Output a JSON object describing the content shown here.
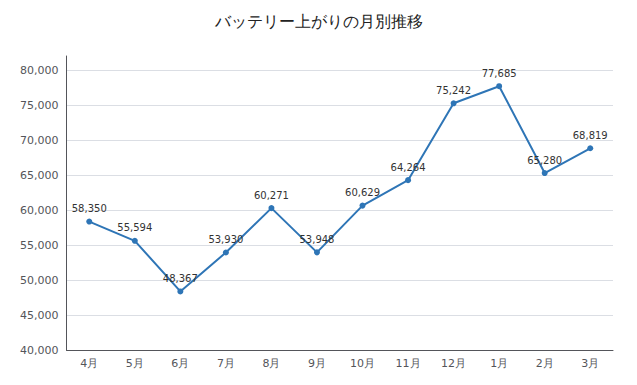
{
  "chart_data": {
    "type": "line",
    "title": "バッテリー上がりの月別推移",
    "categories": [
      "4月",
      "5月",
      "6月",
      "7月",
      "8月",
      "9月",
      "10月",
      "11月",
      "12月",
      "1月",
      "2月",
      "3月"
    ],
    "values": [
      58350,
      55594,
      48367,
      53930,
      60271,
      53948,
      60629,
      64264,
      75242,
      77685,
      65280,
      68819
    ],
    "value_labels": [
      "58,350",
      "55,594",
      "48,367",
      "53,930",
      "60,271",
      "53,948",
      "60,629",
      "64,264",
      "75,242",
      "77,685",
      "65,280",
      "68,819"
    ],
    "data_labels": true,
    "color": "#2E75B6",
    "marker": "circle",
    "ylim": [
      40000,
      82000
    ],
    "yticks": [
      {
        "value": 40000,
        "label": "40,000"
      },
      {
        "value": 45000,
        "label": "45,000"
      },
      {
        "value": 50000,
        "label": "50,000"
      },
      {
        "value": 55000,
        "label": "55,000"
      },
      {
        "value": 60000,
        "label": "60,000"
      },
      {
        "value": 65000,
        "label": "65,000"
      },
      {
        "value": 70000,
        "label": "70,000"
      },
      {
        "value": 75000,
        "label": "75,000"
      },
      {
        "value": 80000,
        "label": "80,000"
      }
    ],
    "grid": true
  }
}
